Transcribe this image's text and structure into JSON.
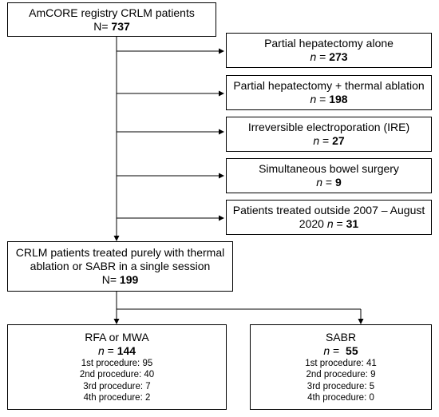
{
  "top": {
    "line1": "AmCORE registry CRLM patients",
    "n_label": "N= ",
    "n_value": "737"
  },
  "exclusions": [
    {
      "text": "Partial hepatectomy alone",
      "n_label": "n",
      "n_sep": " = ",
      "n_value": "273"
    },
    {
      "text": "Partial hepatectomy + thermal ablation",
      "n_label": "n",
      "n_sep": " = ",
      "n_value": "198"
    },
    {
      "text": "Irreversible electroporation (IRE)",
      "n_label": "n",
      "n_sep": " = ",
      "n_value": "27"
    },
    {
      "text": "Simultaneous bowel surgery",
      "n_label": "n",
      "n_sep": " = ",
      "n_value": "9"
    },
    {
      "text1": "Patients treated outside 2007 – August",
      "text2": "2020 ",
      "n_label": "n",
      "n_sep": " = ",
      "n_value": "31"
    }
  ],
  "middle": {
    "line1": "CRLM patients treated purely with thermal",
    "line2": "ablation or SABR in a single session",
    "n_label": "N= ",
    "n_value": "199"
  },
  "left": {
    "title": "RFA or MWA",
    "n_label": "n",
    "n_sep": " = ",
    "n_value": "144",
    "procedures": [
      "1st procedure: 95",
      "2nd procedure: 40",
      "3rd procedure: 7",
      "4th procedure: 2"
    ]
  },
  "right": {
    "title": "SABR",
    "n_label": "n",
    "n_sep": " =  ",
    "n_value": "55",
    "procedures": [
      "1st procedure: 41",
      "2nd procedure: 9",
      "3rd procedure: 5",
      "4th procedure: 0"
    ]
  }
}
